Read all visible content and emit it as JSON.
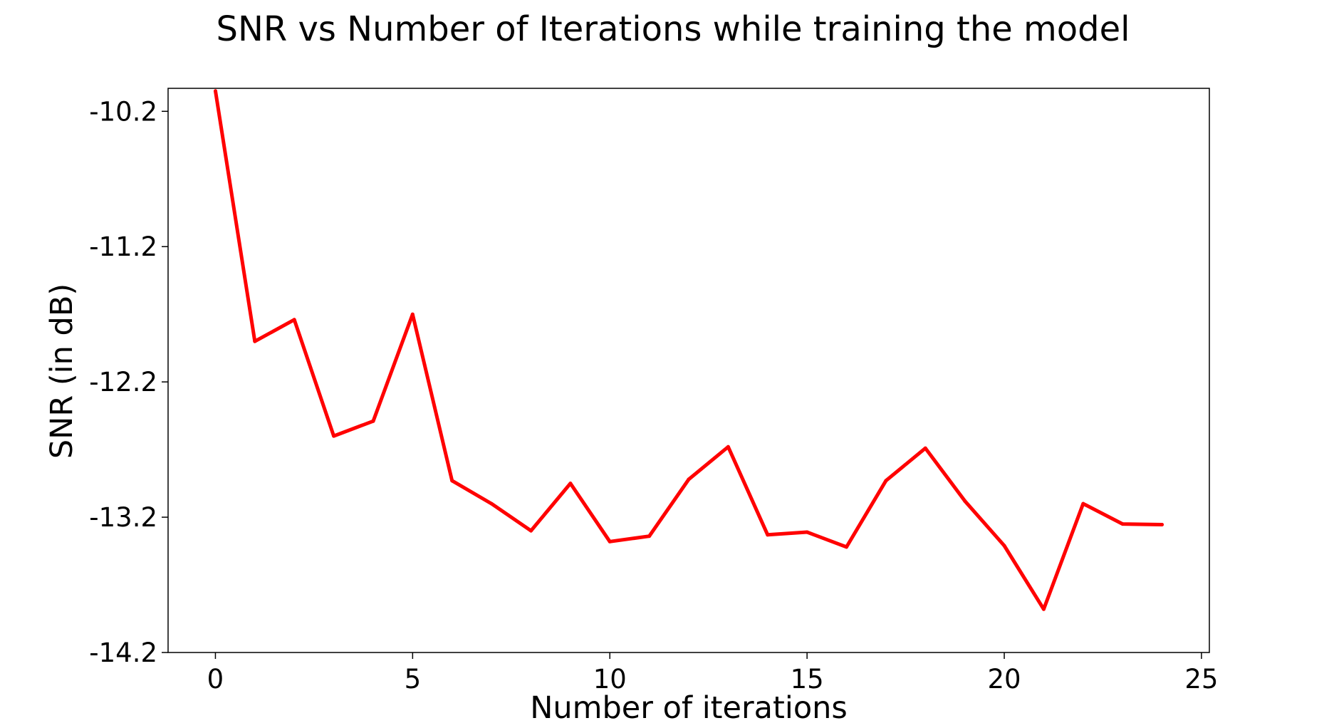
{
  "chart_data": {
    "type": "line",
    "title": "SNR vs Number of Iterations while training the model",
    "xlabel": "Number of iterations",
    "ylabel": "SNR (in dB)",
    "xlim": [
      -1.2,
      25.2
    ],
    "ylim": [
      -14.2,
      -10.03
    ],
    "xticks": [
      0,
      5,
      10,
      15,
      20,
      25
    ],
    "xtick_labels": [
      "0",
      "5",
      "10",
      "15",
      "20",
      "25"
    ],
    "yticks": [
      -10.2,
      -11.2,
      -12.2,
      -13.2,
      -14.2
    ],
    "ytick_labels": [
      "-10.2",
      "-11.2",
      "-12.2",
      "-13.2",
      "-14.2"
    ],
    "grid": false,
    "series": [
      {
        "color": "#ff0000",
        "x": [
          0,
          1,
          2,
          3,
          4,
          5,
          6,
          7,
          8,
          9,
          10,
          11,
          12,
          13,
          14,
          15,
          16,
          17,
          18,
          19,
          20,
          21,
          22,
          23,
          24
        ],
        "y": [
          -10.05,
          -11.9,
          -11.74,
          -12.6,
          -12.49,
          -11.7,
          -12.93,
          -13.1,
          -13.3,
          -12.95,
          -13.38,
          -13.34,
          -12.92,
          -12.68,
          -13.33,
          -13.31,
          -13.42,
          -12.93,
          -12.69,
          -13.08,
          -13.41,
          -13.88,
          -13.1,
          -13.25,
          -13.255
        ]
      }
    ]
  }
}
